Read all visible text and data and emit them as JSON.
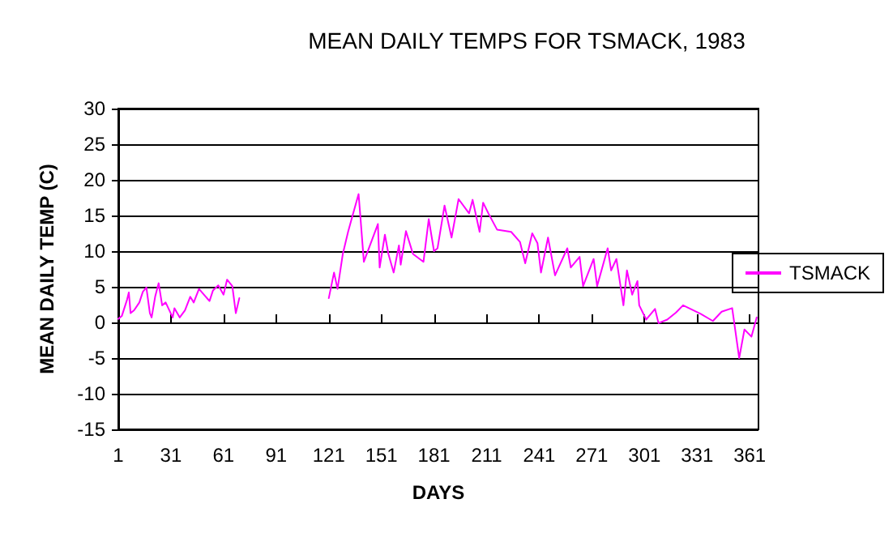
{
  "chart_data": {
    "type": "line",
    "title": "MEAN DAILY TEMPS FOR TSMACK, 1983",
    "xlabel": "DAYS",
    "ylabel": "MEAN DAILY TEMP (C)",
    "xlim": [
      1,
      366
    ],
    "xticks": [
      1,
      31,
      61,
      91,
      121,
      151,
      181,
      211,
      241,
      271,
      301,
      331,
      361
    ],
    "ylim": [
      -15,
      30
    ],
    "yticks": [
      -15,
      -10,
      -5,
      0,
      5,
      10,
      15,
      20,
      25,
      30
    ],
    "grid": "y",
    "legend": "right",
    "marker": "none",
    "line_style": "solid",
    "series": [
      {
        "name": "TSMACK",
        "color": "#ff00ff",
        "x": [
          1,
          3,
          6,
          7,
          8,
          10,
          13,
          15,
          17,
          19,
          20,
          22,
          24,
          26,
          28,
          32,
          33,
          36,
          39,
          42,
          44,
          47,
          53,
          55,
          58,
          61,
          63,
          66,
          68,
          70,
          95,
          121,
          124,
          126,
          129,
          132,
          134,
          138,
          139,
          141,
          149,
          150,
          153,
          155,
          158,
          161,
          162,
          165,
          169,
          175,
          178,
          181,
          183,
          187,
          191,
          195,
          201,
          203,
          207,
          209,
          212,
          217,
          225,
          230,
          233,
          237,
          240,
          242,
          246,
          250,
          257,
          259,
          264,
          266,
          272,
          274,
          280,
          282,
          285,
          289,
          291,
          294,
          297,
          298,
          302,
          307,
          309,
          314,
          319,
          323,
          333,
          340,
          345,
          351,
          355,
          358,
          362,
          365
        ],
        "values": [
          0.5,
          0.9,
          3.2,
          4.2,
          1.3,
          1.7,
          2.8,
          4.3,
          4.9,
          1.3,
          0.7,
          3.6,
          5.5,
          2.4,
          2.8,
          0.7,
          2,
          0.7,
          1.7,
          3.6,
          2.8,
          4.7,
          3,
          4.5,
          5.2,
          3.9,
          6,
          5.1,
          1.3,
          3.4,
          null,
          3.4,
          7,
          4.7,
          9.6,
          12.7,
          14.5,
          18,
          14.9,
          8.5,
          13.8,
          7.7,
          12.3,
          9.6,
          7,
          10.8,
          8.1,
          12.8,
          9.6,
          8.5,
          14.5,
          10,
          10.4,
          16.4,
          11.9,
          17.3,
          15.3,
          17.2,
          12.7,
          16.8,
          15.3,
          13,
          12.7,
          11.3,
          8.3,
          12.5,
          11.1,
          7,
          11.9,
          6.6,
          10.4,
          7.7,
          9.2,
          5.1,
          8.9,
          5.1,
          10.4,
          7.3,
          8.9,
          2.4,
          7.3,
          3.9,
          5.8,
          2.4,
          0.4,
          1.9,
          -0.1,
          0.4,
          1.4,
          2.4,
          1.2,
          0.2,
          1.5,
          2,
          -5,
          -1,
          -2,
          0.7
        ]
      }
    ]
  }
}
